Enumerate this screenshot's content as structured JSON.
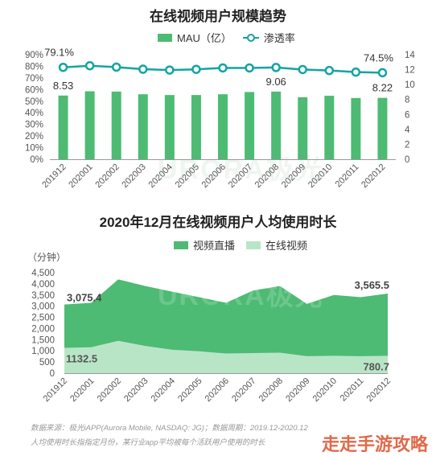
{
  "chart_data": [
    {
      "type": "bar",
      "title": "在线视频用户规模趋势",
      "categories": [
        "201912",
        "202001",
        "202002",
        "202003",
        "202004",
        "202005",
        "202006",
        "202007",
        "202008",
        "202009",
        "202010",
        "202011",
        "202012"
      ],
      "series": [
        {
          "name": "MAU（亿）",
          "type": "bar",
          "axis": "right",
          "values": [
            8.53,
            9.1,
            9.06,
            8.7,
            8.6,
            8.6,
            8.7,
            9.0,
            9.06,
            8.3,
            8.5,
            8.2,
            8.22
          ]
        },
        {
          "name": "渗透率",
          "type": "line",
          "axis": "left",
          "values": [
            79.1,
            80.5,
            79.3,
            77.5,
            76.8,
            77.4,
            78.6,
            78.6,
            79.0,
            77.2,
            76.4,
            75.0,
            74.5
          ]
        }
      ],
      "left_axis": {
        "ticks": [
          "0%",
          "10%",
          "20%",
          "30%",
          "40%",
          "50%",
          "60%",
          "70%",
          "80%",
          "90%"
        ],
        "ylim": [
          0,
          90
        ]
      },
      "right_axis": {
        "ticks": [
          "0",
          "2",
          "4",
          "6",
          "8",
          "10",
          "12",
          "14"
        ],
        "ylim": [
          0,
          14
        ]
      },
      "data_labels": {
        "rate_first": "79.1%",
        "rate_last": "74.5%",
        "mau_first": "8.53",
        "mau_mid": "9.06",
        "mau_last": "8.22"
      },
      "legend": [
        "MAU（亿）",
        "渗透率"
      ],
      "colors": {
        "bar": "#4dbb73",
        "line": "#14a4a2"
      }
    },
    {
      "type": "area",
      "title": "2020年12月在线视频用户人均使用时长",
      "ylabel": "（分钟）",
      "categories": [
        "201912",
        "202001",
        "202002",
        "202003",
        "202004",
        "202005",
        "202006",
        "202007",
        "202008",
        "202009",
        "202010",
        "202011",
        "202012"
      ],
      "series": [
        {
          "name": "视频直播",
          "values": [
            3075.4,
            3150,
            4200,
            3900,
            3650,
            3400,
            3150,
            3700,
            3900,
            3100,
            3500,
            3400,
            3565.5
          ]
        },
        {
          "name": "在线视频",
          "values": [
            1132.5,
            1160,
            1450,
            1220,
            1050,
            980,
            880,
            900,
            920,
            760,
            780,
            760,
            780.7
          ]
        }
      ],
      "yticks": [
        "0",
        "500",
        "1,000",
        "1,500",
        "2,000",
        "2,500",
        "3,000",
        "3,500",
        "4,000",
        "4,500"
      ],
      "ylim": [
        0,
        4500
      ],
      "data_labels": {
        "live_first": "3,075.4",
        "live_last": "3,565.5",
        "video_first": "1132.5",
        "video_last": "780.7"
      },
      "legend": [
        "视频直播",
        "在线视频"
      ],
      "colors": {
        "live": "#4dbb73",
        "video": "#b9e5c7"
      }
    }
  ],
  "source": {
    "line1": "数据来源：极光iAPP(Aurora Mobile, NASDAQ: JG)；数据周期：2019.12-2020.12",
    "line2": "人均使用时长指指定月份，某行业app平均被每个活跃用户使用的时长"
  },
  "watermark": {
    "brand": "URORA极光",
    "corner": "走走手游攻略"
  }
}
